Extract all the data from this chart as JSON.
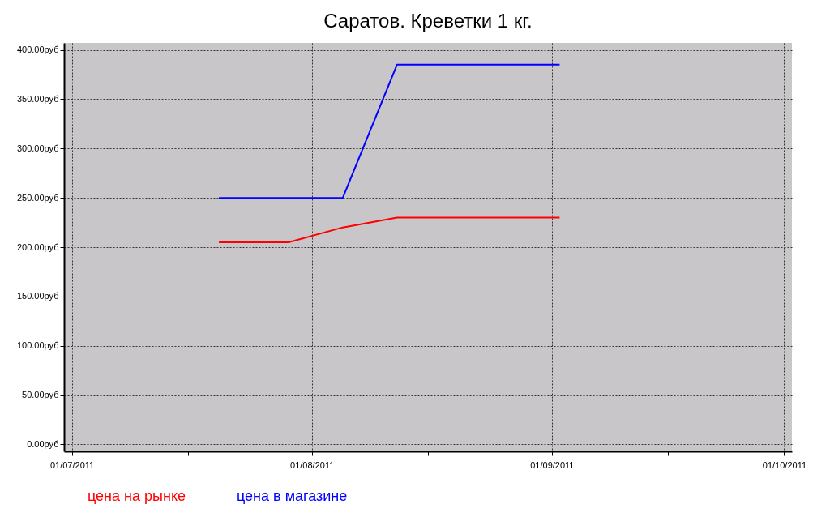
{
  "chart_data": {
    "type": "line",
    "title": "Саратов. Креветки 1 кг.",
    "x": [
      "2011-07-20",
      "2011-07-29",
      "2011-08-05",
      "2011-08-12",
      "2011-08-19",
      "2011-08-26",
      "2011-09-02"
    ],
    "series": [
      {
        "name": "цена на рынке",
        "color": "#ff0000",
        "values": [
          205,
          205,
          220,
          230,
          230,
          230,
          230
        ]
      },
      {
        "name": "цена в магазине",
        "color": "#0000ff",
        "values": [
          250,
          250,
          250,
          385,
          385,
          385,
          385
        ]
      }
    ],
    "xlim": [
      "2011-06-30",
      "2011-10-02"
    ],
    "xticks": [
      {
        "value": "2011-07-01",
        "label": "01/07/2011"
      },
      {
        "value": "2011-07-16",
        "label": null
      },
      {
        "value": "2011-08-01",
        "label": "01/08/2011"
      },
      {
        "value": "2011-08-16",
        "label": null
      },
      {
        "value": "2011-09-01",
        "label": "01/09/2011"
      },
      {
        "value": "2011-09-16",
        "label": null
      },
      {
        "value": "2011-10-01",
        "label": "01/10/2011"
      }
    ],
    "ylim": [
      -7,
      407
    ],
    "yticks": [
      {
        "value": 0,
        "label": "0.00руб"
      },
      {
        "value": 50,
        "label": "50.00руб"
      },
      {
        "value": 100,
        "label": "100.00руб"
      },
      {
        "value": 150,
        "label": "150.00руб"
      },
      {
        "value": 200,
        "label": "200.00руб"
      },
      {
        "value": 250,
        "label": "250.00руб"
      },
      {
        "value": 300,
        "label": "300.00руб"
      },
      {
        "value": 350,
        "label": "350.00руб"
      },
      {
        "value": 400,
        "label": "400.00руб"
      }
    ],
    "grid": true,
    "legend": "bottom",
    "marker": "none",
    "line_style": "solid"
  }
}
